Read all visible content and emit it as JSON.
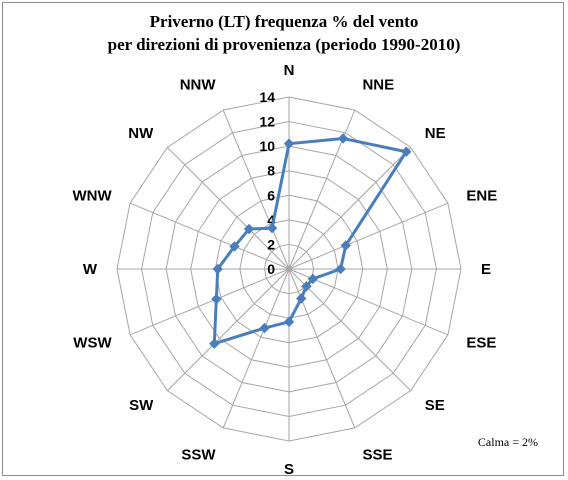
{
  "chart_data": {
    "type": "radar",
    "title_lines": [
      "Priverno (LT) frequenza % del vento",
      "per direzioni di provenienza (periodo 1990-2010)"
    ],
    "categories": [
      "N",
      "NNE",
      "NE",
      "ENE",
      "E",
      "ESE",
      "SE",
      "SSE",
      "S",
      "SSW",
      "SW",
      "WSW",
      "W",
      "WNW",
      "NW",
      "NNW"
    ],
    "series": [
      {
        "values": [
          10.2,
          11.5,
          13.5,
          5.0,
          4.2,
          2.1,
          2.0,
          2.6,
          4.3,
          5.2,
          8.6,
          6.4,
          5.8,
          4.8,
          4.6,
          3.6
        ]
      }
    ],
    "rmin": 0,
    "rmax": 14,
    "ticks": [
      "0",
      "2",
      "4",
      "6",
      "8",
      "10",
      "12",
      "14"
    ],
    "grid": true,
    "series_color": "#4a7ebb",
    "grid_color": "#a6a6a6",
    "note": "Calma = 2%"
  }
}
